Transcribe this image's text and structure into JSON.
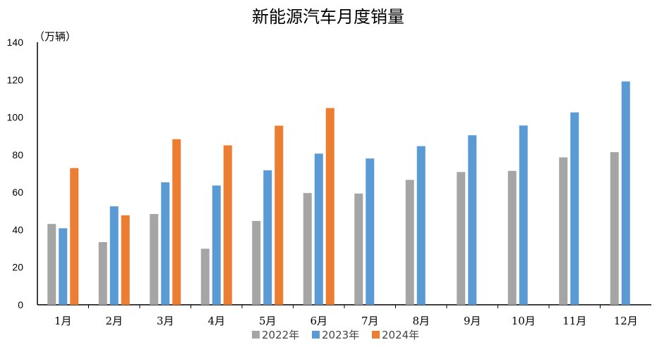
{
  "chart_data": {
    "type": "bar",
    "title": "新能源汽车月度销量",
    "unit_label": "（万辆）",
    "ylim": [
      0,
      140
    ],
    "yticks": [
      0,
      20,
      40,
      60,
      80,
      100,
      120,
      140
    ],
    "categories": [
      "1月",
      "2月",
      "3月",
      "4月",
      "5月",
      "6月",
      "7月",
      "8月",
      "9月",
      "10月",
      "11月",
      "12月"
    ],
    "series": [
      {
        "name": "2022年",
        "color": "#a5a5a5",
        "values": [
          43.1,
          33.4,
          48.4,
          29.9,
          44.7,
          59.6,
          59.3,
          66.6,
          70.8,
          71.4,
          78.6,
          81.4
        ]
      },
      {
        "name": "2023年",
        "color": "#5b9bd5",
        "values": [
          40.8,
          52.5,
          65.3,
          63.6,
          71.7,
          80.6,
          78.0,
          84.6,
          90.4,
          95.6,
          102.6,
          119.1
        ]
      },
      {
        "name": "2024年",
        "color": "#ed7d31",
        "values": [
          72.9,
          47.7,
          88.3,
          85.0,
          95.5,
          104.9,
          null,
          null,
          null,
          null,
          null,
          null
        ]
      }
    ],
    "legend_position": "bottom",
    "grid": false
  }
}
